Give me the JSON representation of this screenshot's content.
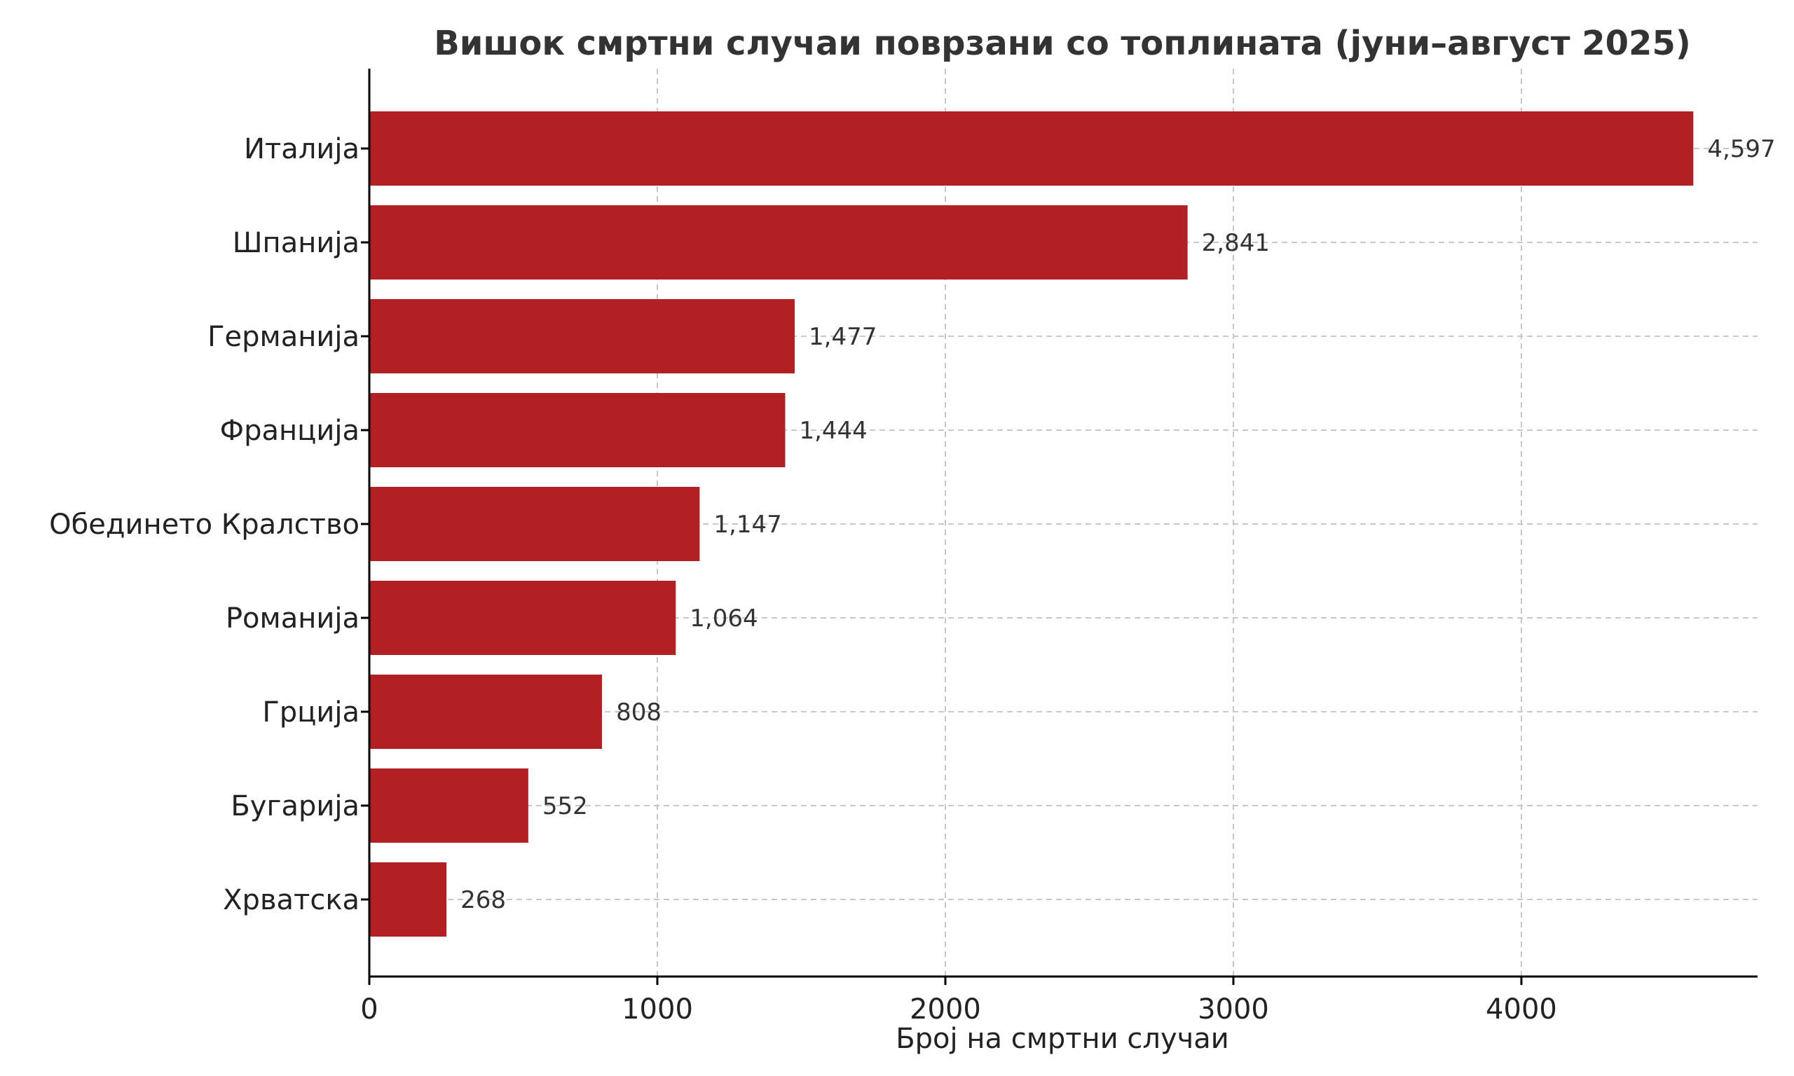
{
  "chart_data": {
    "type": "bar",
    "orientation": "horizontal",
    "title": "Вишок смртни случаи поврзани со топлината (јуни–август 2025)",
    "xlabel": "Број на смртни случаи",
    "ylabel": "",
    "categories": [
      "Италија",
      "Шпанија",
      "Германија",
      "Франција",
      "Обединето Кралство",
      "Романија",
      "Грција",
      "Бугарија",
      "Хрватска"
    ],
    "values": [
      4597,
      2841,
      1477,
      1444,
      1147,
      1064,
      808,
      552,
      268
    ],
    "value_labels": [
      "4,597",
      "2,841",
      "1,477",
      "1,444",
      "1,147",
      "1,064",
      "808",
      "552",
      "268"
    ],
    "xticks": [
      "0",
      "1000",
      "2000",
      "3000",
      "4000"
    ],
    "xlim": [
      0,
      4820
    ],
    "grid": true,
    "bar_color": "#b22024"
  }
}
